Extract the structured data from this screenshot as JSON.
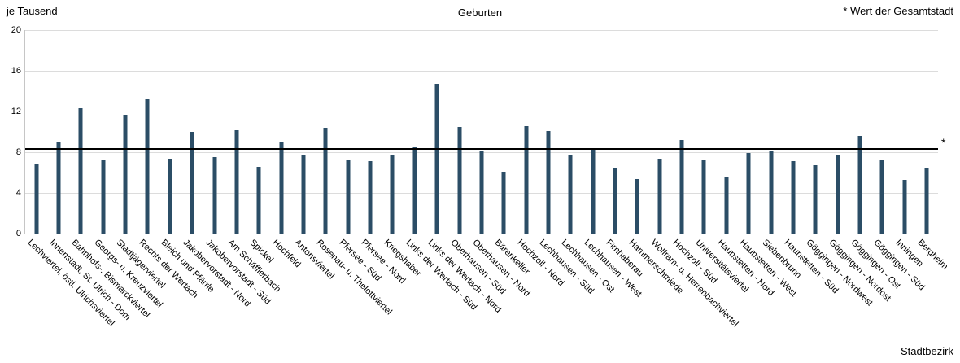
{
  "header": {
    "y_axis_unit": "je Tausend",
    "title": "Geburten",
    "note": "* Wert der Gesamtstadt"
  },
  "footer": {
    "x_axis_title": "Stadtbezirk"
  },
  "colors": {
    "bar": "#2b4d66",
    "gridline": "#dcdcdc",
    "axis": "#c6c6c6",
    "reference_line": "#000000"
  },
  "chart_data": {
    "type": "bar",
    "title": "Geburten",
    "ylabel": "je Tausend",
    "xlabel": "Stadtbezirk",
    "ylim": [
      0,
      20
    ],
    "yticks": [
      0,
      4,
      8,
      12,
      16,
      20
    ],
    "grid": true,
    "legend": false,
    "bar_color": "#2b4d66",
    "reference_line": {
      "value": 8.3,
      "marker": "*",
      "label": "* Wert der Gesamtstadt",
      "color": "#000000"
    },
    "categories": [
      "Lechviertel, östl. Ulrichsviertel",
      "Innenstadt, St. Ulrich - Dom",
      "Bahnhofs-, Bismarckviertel",
      "Georgs- u. Kreuzviertel",
      "Stadtjägerviertel",
      "Rechts der Wertach",
      "Bleich und Pfärrle",
      "Jakobervorstadt - Nord",
      "Jakobervorstadt - Süd",
      "Am Schäfflerbach",
      "Spickel",
      "Hochfeld",
      "Antonsviertel",
      "Rosenau- u. Thelottviertel",
      "Pfersee - Süd",
      "Pfersee - Nord",
      "Kriegshaber",
      "Links der Wertach - Süd",
      "Links der Wertach - Nord",
      "Oberhausen - Süd",
      "Oberhausen - Nord",
      "Bärenkeller",
      "Hochzoll - Nord",
      "Lechhausen - Süd",
      "Lechhausen - Ost",
      "Lechhausen - West",
      "Firnhaberau",
      "Hammerschmiede",
      "Wolfram- u. Herrenbachviertel",
      "Hochzoll - Süd",
      "Universitätsviertel",
      "Haunstetten - Nord",
      "Haunstetten - West",
      "Siebenbrunn",
      "Haunstetten - Süd",
      "Göggingen - Nordwest",
      "Göggingen - Nordost",
      "Göggingen - Ost",
      "Göggingen - Süd",
      "Inningen",
      "Bergheim"
    ],
    "values": [
      6.8,
      9.0,
      12.3,
      7.3,
      11.7,
      13.2,
      7.4,
      10.0,
      7.5,
      10.2,
      6.6,
      9.0,
      7.8,
      10.4,
      7.2,
      7.1,
      7.8,
      8.6,
      14.7,
      10.5,
      8.1,
      6.1,
      10.6,
      10.1,
      7.8,
      8.4,
      6.4,
      5.4,
      7.4,
      9.2,
      7.2,
      5.6,
      7.9,
      8.1,
      7.1,
      6.7,
      7.7,
      9.6,
      7.2,
      5.3,
      6.4
    ]
  }
}
